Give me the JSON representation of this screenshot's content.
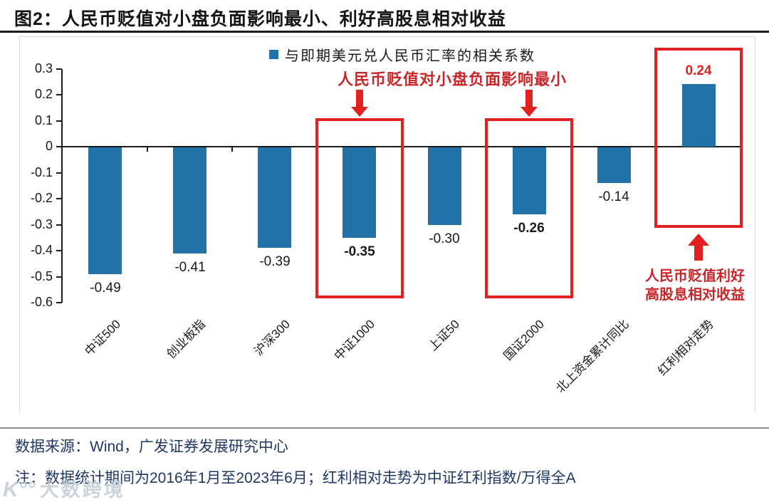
{
  "figure": {
    "title": "图2：人民币贬值对小盘负面影响最小、利好高股息相对收益"
  },
  "chart_data": {
    "type": "bar",
    "title": "图2：人民币贬值对小盘负面影响最小、利好高股息相对收益",
    "legend": [
      "与即期美元兑人民币汇率的相关系数"
    ],
    "legend_position": "top-center",
    "categories": [
      "中证500",
      "创业板指",
      "沪深300",
      "中证1000",
      "上证50",
      "国证2000",
      "北上资金累计同比",
      "红利相对走势"
    ],
    "values": [
      -0.49,
      -0.41,
      -0.39,
      -0.35,
      -0.3,
      -0.26,
      -0.14,
      0.24
    ],
    "value_labels": [
      "-0.49",
      "-0.41",
      "-0.39",
      "-0.35",
      "-0.30",
      "-0.26",
      "-0.14",
      "0.24"
    ],
    "xlabel": "",
    "ylabel": "",
    "ylim": [
      -0.6,
      0.3
    ],
    "yticks": [
      0.3,
      0.2,
      0.1,
      0,
      -0.1,
      -0.2,
      -0.3,
      -0.4,
      -0.5,
      -0.6
    ],
    "ytick_labels": [
      "0.3",
      "0.2",
      "0.1",
      "0",
      "-0.1",
      "-0.2",
      "-0.3",
      "-0.4",
      "-0.5",
      "-0.6"
    ],
    "grid": false,
    "annotations": [
      {
        "text": "人民币贬值对小盘负面影响最小",
        "target_categories": [
          "中证1000",
          "国证2000"
        ],
        "arrow": "down"
      },
      {
        "text": "人民币贬值利好高股息相对收益",
        "lines": [
          "人民币贬值利好",
          "高股息相对收益"
        ],
        "target_categories": [
          "红利相对走势"
        ],
        "arrow": "up"
      }
    ],
    "emphasis": {
      "bold_value_categories": [
        "中证1000",
        "国证2000"
      ],
      "red_value_categories": [
        "红利相对走势"
      ]
    },
    "colors": {
      "bar": "#2272A8",
      "highlight_red": "#E02120",
      "annotation_text_red": "#C8262A",
      "footer_navy": "#1F3864",
      "axis": "#1A1A1A"
    }
  },
  "footer": {
    "source": "数据来源：Wind，广发证券发展研究中心",
    "note": "注：数据统计期间为2016年1月至2023年6月；红利相对走势为中证红利指数/万得全A"
  },
  "watermark": {
    "logo": "K°°",
    "text": "大数跨境"
  }
}
